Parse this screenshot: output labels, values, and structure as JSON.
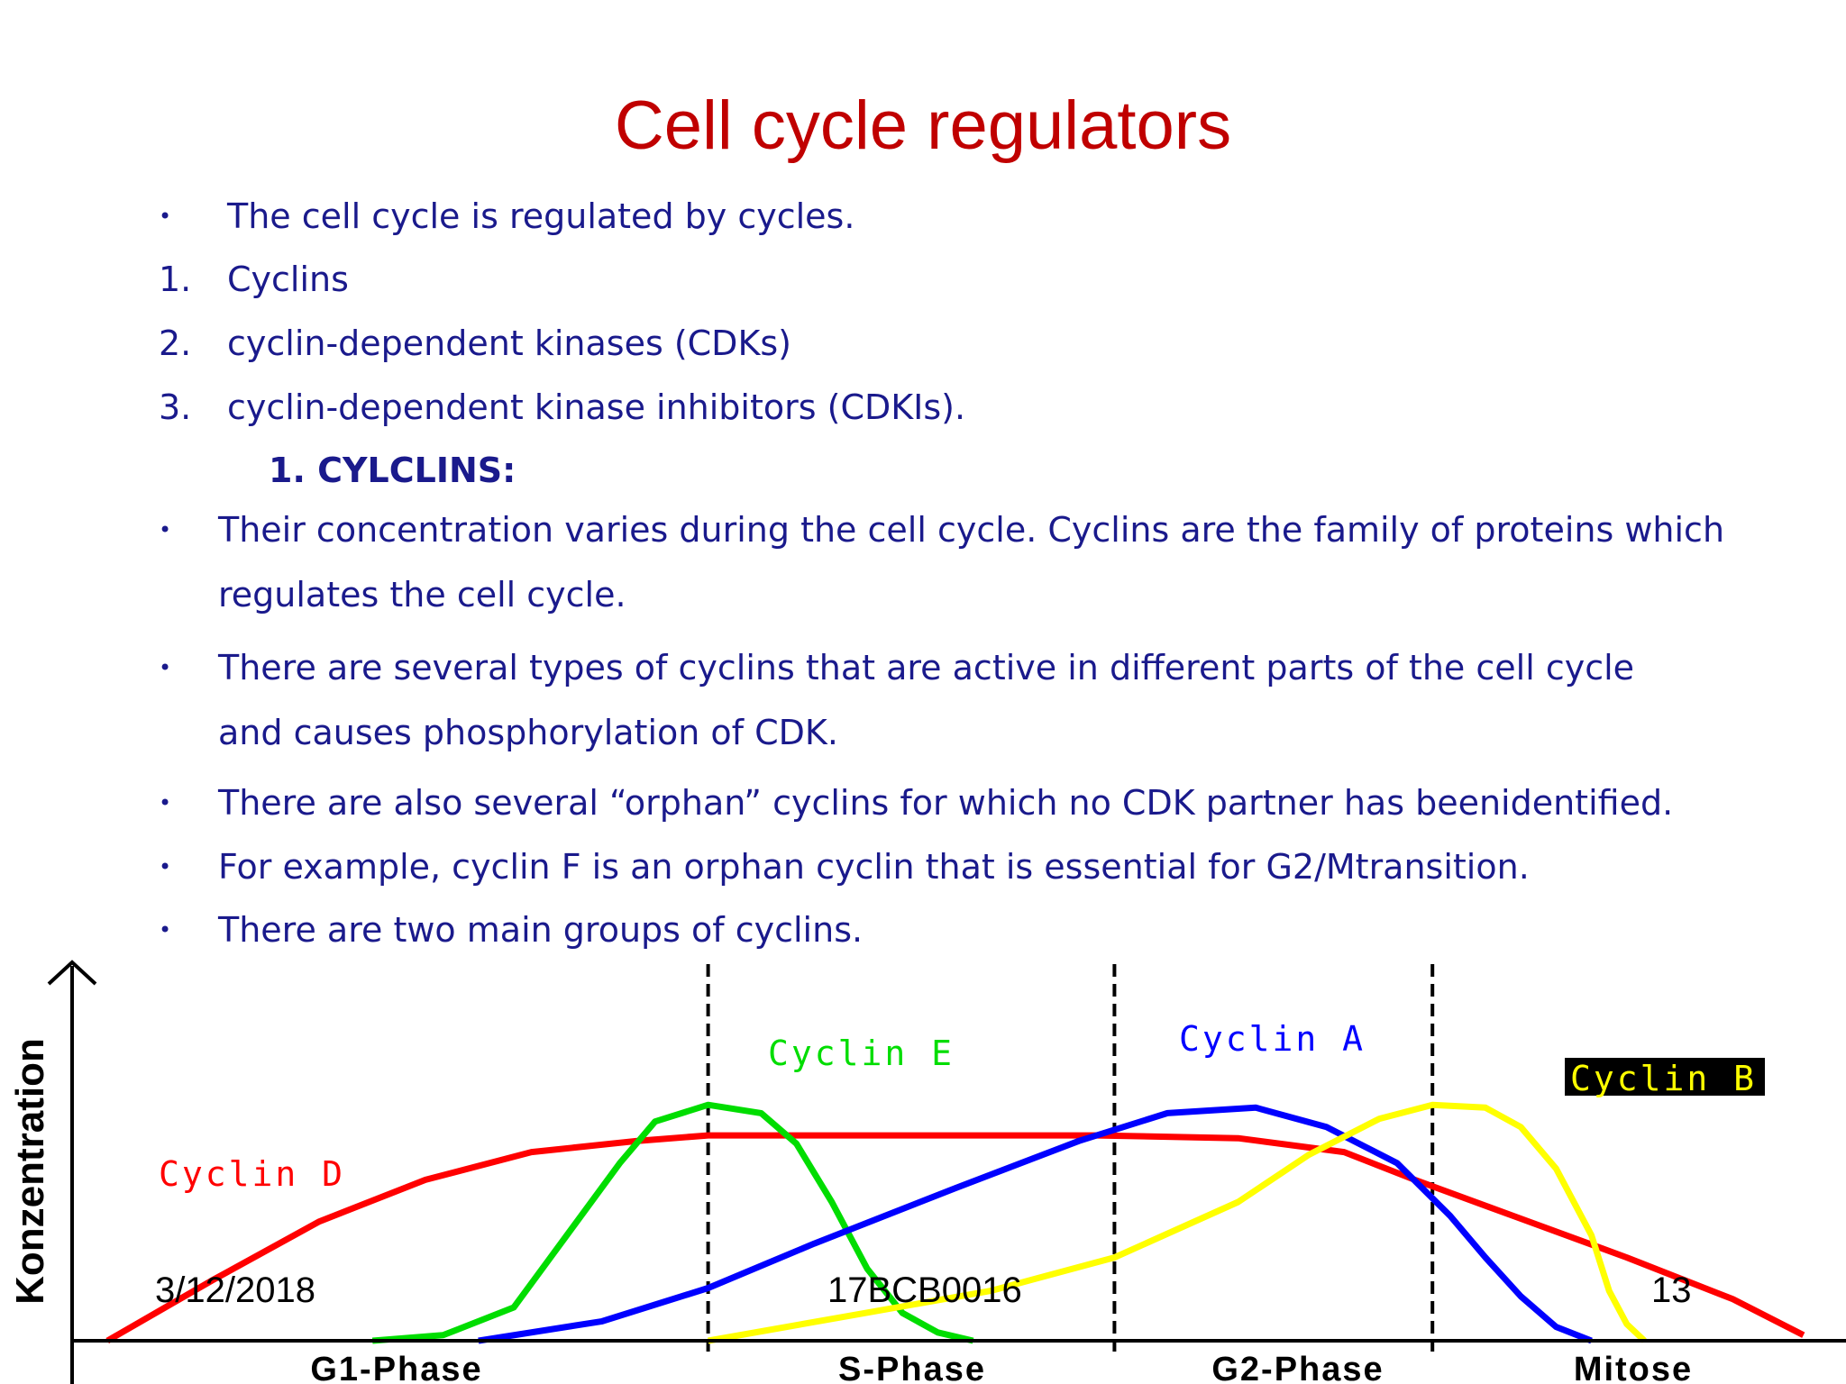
{
  "slide": {
    "title": "Cell cycle regulators",
    "intro": {
      "marker": "•",
      "text": "The cell cycle is regulated by cycles."
    },
    "numbered": [
      {
        "marker": "1.",
        "text": "Cyclins"
      },
      {
        "marker": "2.",
        "text": "cyclin-dependent kinases (CDKs)"
      },
      {
        "marker": "3.",
        "text": "cyclin-dependent kinase inhibitors (CDKIs)."
      }
    ],
    "subheading": "1. CYLCLINS:",
    "bullets": [
      {
        "marker": "•",
        "lines": [
          "Their concentration varies during the cell cycle. Cyclins are the family of proteins which",
          "regulates the cell  cycle."
        ]
      },
      {
        "marker": "•",
        "lines": [
          "There are several types of cyclins that are active in different parts of the cell cycle",
          "and causes  phosphorylation of CDK."
        ]
      },
      {
        "marker": "•",
        "lines": [
          "There are also several “orphan” cyclins for which no CDK partner has beenidentified."
        ]
      },
      {
        "marker": "•",
        "lines": [
          "For example, cyclin F is an orphan cyclin that is essential for G2/Mtransition."
        ]
      },
      {
        "marker": "•",
        "lines": [
          "There are two main groups of cyclins."
        ]
      }
    ]
  },
  "chart_data": {
    "type": "line",
    "title": "",
    "xlabel": "",
    "ylabel": "Konzentration",
    "x_range": [
      0,
      100
    ],
    "y_range": [
      0,
      100
    ],
    "grid": false,
    "phase_boundaries": [
      36,
      59,
      77
    ],
    "phases": [
      "G1-Phase",
      "S-Phase",
      "G2-Phase",
      "Mitose"
    ],
    "series": [
      {
        "name": "Cyclin D",
        "color": "#ff0000",
        "x": [
          2,
          8,
          14,
          20,
          26,
          32,
          36,
          42,
          50,
          58,
          66,
          72,
          76,
          82,
          88,
          94,
          98
        ],
        "y": [
          0,
          22,
          43,
          58,
          68,
          72,
          74,
          74,
          74,
          74,
          73,
          68,
          58,
          44,
          30,
          15,
          2
        ]
      },
      {
        "name": "Cyclin E",
        "color": "#00dd00",
        "x": [
          17,
          21,
          25,
          28,
          31,
          33,
          36,
          39,
          41,
          43,
          45,
          47,
          49,
          51
        ],
        "y": [
          0,
          2,
          12,
          38,
          64,
          79,
          85,
          82,
          71,
          50,
          26,
          10,
          3,
          0
        ]
      },
      {
        "name": "Cyclin A",
        "color": "#0000ff",
        "x": [
          23,
          30,
          36,
          42,
          50,
          57,
          62,
          67,
          71,
          75,
          78,
          80,
          82,
          84,
          86
        ],
        "y": [
          0,
          7,
          19,
          35,
          55,
          72,
          82,
          84,
          77,
          64,
          45,
          30,
          16,
          5,
          0
        ]
      },
      {
        "name": "Cyclin B",
        "color": "#ffff00",
        "x": [
          36,
          44,
          52,
          59,
          66,
          70,
          74,
          77,
          80,
          82,
          84,
          86,
          87,
          88,
          89
        ],
        "y": [
          0,
          9,
          18,
          30,
          50,
          67,
          80,
          85,
          84,
          77,
          62,
          38,
          18,
          6,
          0
        ]
      }
    ]
  },
  "footer": {
    "date": "3/12/2018",
    "id": "17BCB0016",
    "page": "13"
  }
}
